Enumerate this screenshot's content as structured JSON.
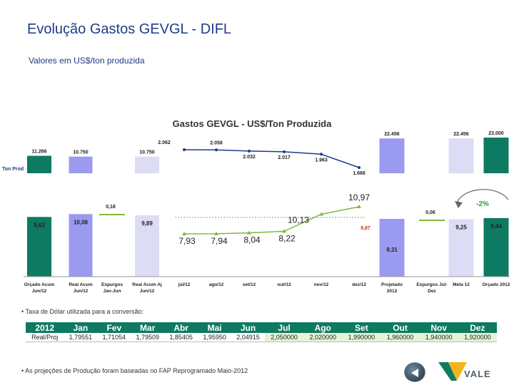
{
  "header": {
    "title": "Evolução Gastos GEVGL - DIFL",
    "subtitle": "Valores em US$/ton produzida"
  },
  "chart_data": {
    "type": "bar",
    "title": "Gastos GEVGL - US$/Ton Produzida",
    "y_axis_label": "Ton Prod",
    "categories": [
      "Orçado Acum Jun/12",
      "Real Acum Jun/12",
      "Expurgos Jan-Jun",
      "Real Acum Aj Jun/12",
      "jul/12",
      "ago/12",
      "set/12",
      "out/12",
      "nov/12",
      "dez/12",
      "Projetado 2012",
      "Expurgos Jul-Dez",
      "Meta 12",
      "Orçado 2012"
    ],
    "category_lines": [
      [
        "Orçado Acum",
        "Jun/12"
      ],
      [
        "Real Acum",
        "Jun/12"
      ],
      [
        "Expurgos",
        "Jan-Jun"
      ],
      [
        "Real Acum Aj",
        "Jun/12"
      ],
      [
        "jul/12"
      ],
      [
        "ago/12"
      ],
      [
        "set/12"
      ],
      [
        "out/12"
      ],
      [
        "nov/12"
      ],
      [
        "dez/12"
      ],
      [
        "Projetado",
        "2012"
      ],
      [
        "Expurgos Jul-",
        "Dez"
      ],
      [
        "Meta 12"
      ],
      [
        "Orçado 2012"
      ]
    ],
    "ton_prod": {
      "bar_categories": [
        "Orçado Acum Jun/12",
        "Real Acum Jun/12",
        "Real Acum Aj Jun/12",
        "Projetado 2012",
        "Meta 12",
        "Orçado 2012"
      ],
      "bar_values": [
        11266,
        10750,
        10750,
        22456,
        22456,
        23000
      ],
      "bar_labels": [
        "11.266",
        "10.750",
        "10.750",
        "22.456",
        "22.456",
        "23.000"
      ],
      "line_categories": [
        "jul/12",
        "ago/12",
        "set/12",
        "out/12",
        "nov/12",
        "dez/12"
      ],
      "line_values": [
        2062,
        2058,
        2032,
        2017,
        1963,
        1666
      ],
      "line_labels": [
        "2.062",
        "2.058",
        "2.032",
        "2.017",
        "1.963",
        "1.666"
      ]
    },
    "cost": {
      "bars": [
        {
          "category": "Orçado Acum Jun/12",
          "value": 9.62,
          "label": "9,62"
        },
        {
          "category": "Real Acum Jun/12",
          "value": 10.08,
          "label": "10,08"
        },
        {
          "category": "Expurgos Jan-Jun",
          "value": 0.18,
          "label": "0,18"
        },
        {
          "category": "Real Acum Aj Jun/12",
          "value": 9.89,
          "label": "9,89"
        },
        {
          "category": "Projetado 2012",
          "value": 9.31,
          "label": "9,31"
        },
        {
          "category": "Expurgos Jul-Dez",
          "value": 0.06,
          "label": "0,06"
        },
        {
          "category": "Meta 12",
          "value": 9.25,
          "label": "9,25"
        },
        {
          "category": "Orçado 2012",
          "value": 9.44,
          "label": "9,44"
        }
      ],
      "line_categories": [
        "jul/12",
        "ago/12",
        "set/12",
        "out/12",
        "nov/12",
        "dez/12"
      ],
      "line_values": [
        7.93,
        7.94,
        8.04,
        8.22,
        10.13,
        10.97
      ],
      "line_labels": [
        "7,93",
        "7,94",
        "8,04",
        "8,22",
        "10,13",
        "10,97"
      ],
      "reference_label": "8,87"
    },
    "variation_label": "-2%",
    "colors": {
      "teal": "#0e7a62",
      "lavender": "#9a9af0",
      "light": "#dcdcf5",
      "line_cost": "#7cba3c",
      "line_prod": "#1f3c88",
      "reference": "#c0392b"
    }
  },
  "notes": {
    "exchange": "• Taxa de Dólar utilizada para a conversão:",
    "production": "• As projeções de Produção foram baseadas no FAP Reprogramado Maio-2012"
  },
  "rates_table": {
    "headers": [
      "2012",
      "Jan",
      "Fev",
      "Mar",
      "Abr",
      "Mai",
      "Jun",
      "Jul",
      "Ago",
      "Set",
      "Out",
      "Nov",
      "Dez"
    ],
    "row": [
      "Real/Proj",
      "1,79551",
      "1,71054",
      "1,79509",
      "1,85405",
      "1,95950",
      "2,04915",
      "2,050000",
      "2,020000",
      "1,990000",
      "1,960000",
      "1,940000",
      "1,920000"
    ]
  },
  "brand": {
    "logo_text": "VALE"
  }
}
